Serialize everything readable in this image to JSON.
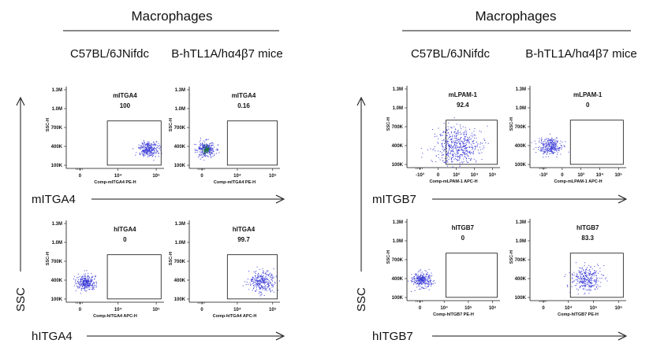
{
  "groups": [
    {
      "title": "Macrophages",
      "strains": [
        "C57BL/6JNifdc",
        "B-hTL1A/hα4β7 mice"
      ],
      "y_axis_label": "SSC",
      "rows": [
        {
          "x_axis_label": "mITGA4",
          "panels": [
            {
              "gate_name": "mITGA4",
              "gate_value": "100",
              "x_axis_name": "Comp-mITGA4 PE-H",
              "x_ticks": [
                "0",
                "10⁴",
                "10⁵"
              ],
              "y_axis_name": "SSC-H",
              "y_ticks": [
                "1.3M",
                "1.0M",
                "700K",
                "400K",
                "100K"
              ],
              "population": {
                "x": 0.84,
                "y": 0.24,
                "spread": 0.05,
                "density": "normal"
              }
            },
            {
              "gate_name": "mITGA4",
              "gate_value": "0.16",
              "x_axis_name": "Comp-mITGA4 PE-H",
              "x_ticks": [
                "0",
                "10⁴",
                "10⁵"
              ],
              "y_axis_name": "SSC-H",
              "y_ticks": [
                "1.3M",
                "1.0M",
                "700K",
                "400K",
                "100K"
              ],
              "population": {
                "x": 0.18,
                "y": 0.24,
                "spread": 0.05,
                "density": "dense"
              }
            }
          ]
        },
        {
          "x_axis_label": "hITGA4",
          "panels": [
            {
              "gate_name": "hITGA4",
              "gate_value": "0",
              "x_axis_name": "Comp-hITGA4 APC-H",
              "x_ticks": [
                "0",
                "10⁴",
                "10⁵"
              ],
              "y_axis_name": "SSC-H",
              "y_ticks": [
                "1.3M",
                "1.0M",
                "700K",
                "400K",
                "100K"
              ],
              "population": {
                "x": 0.2,
                "y": 0.24,
                "spread": 0.05,
                "density": "normal"
              }
            },
            {
              "gate_name": "hITGA4",
              "gate_value": "99.7",
              "x_axis_name": "Comp-hITGA4 APC-H",
              "x_ticks": [
                "0",
                "10⁴",
                "10⁵"
              ],
              "y_axis_name": "SSC-H",
              "y_ticks": [
                "1.3M",
                "1.0M",
                "700K",
                "400K",
                "100K"
              ],
              "population": {
                "x": 0.8,
                "y": 0.26,
                "spread": 0.07,
                "density": "normal"
              }
            }
          ]
        }
      ]
    },
    {
      "title": "Macrophages",
      "strains": [
        "C57BL/6JNifdc",
        "B-hTL1A/hα4β7 mice"
      ],
      "y_axis_label": "SSC",
      "rows": [
        {
          "x_axis_label": "mITGB7",
          "panels": [
            {
              "gate_name": "mLPAM-1",
              "gate_value": "92.4",
              "x_axis_name": "Comp-mLPAM-1 APC-H",
              "x_ticks": [
                "-10³",
                "0",
                "10³",
                "10⁴",
                "10⁵"
              ],
              "y_axis_name": "SSC-H",
              "y_ticks": [
                "1.3M",
                "1.0M",
                "700K",
                "400K",
                "100K"
              ],
              "population": {
                "x": 0.55,
                "y": 0.27,
                "spread": 0.13,
                "density": "wide"
              }
            },
            {
              "gate_name": "mLPAM-1",
              "gate_value": "0",
              "x_axis_name": "Comp-mLPAM-1 APC-H",
              "x_ticks": [
                "-10³",
                "0",
                "10³",
                "10⁴",
                "10⁵"
              ],
              "y_axis_name": "SSC-H",
              "y_ticks": [
                "1.3M",
                "1.0M",
                "700K",
                "400K",
                "100K"
              ],
              "population": {
                "x": 0.2,
                "y": 0.26,
                "spread": 0.06,
                "density": "normal"
              }
            }
          ]
        },
        {
          "x_axis_label": "hITGB7",
          "panels": [
            {
              "gate_name": "hITGB7",
              "gate_value": "0",
              "x_axis_name": "Comp-hITGB7 PE-H",
              "x_ticks": [
                "0",
                "10⁴",
                "10⁵",
                "10⁶"
              ],
              "y_axis_name": "SSC-H",
              "y_ticks": [
                "1.3M",
                "1.0M",
                "700K",
                "400K",
                "100K"
              ],
              "population": {
                "x": 0.16,
                "y": 0.26,
                "spread": 0.05,
                "density": "normal"
              }
            },
            {
              "gate_name": "hITGB7",
              "gate_value": "83.3",
              "x_axis_name": "Comp-hITGB7 PE-H",
              "x_ticks": [
                "0",
                "10⁴",
                "10⁵",
                "10⁶"
              ],
              "y_axis_name": "SSC-H",
              "y_ticks": [
                "1.3M",
                "1.0M",
                "700K",
                "400K",
                "100K"
              ],
              "population": {
                "x": 0.58,
                "y": 0.27,
                "spread": 0.08,
                "density": "normal"
              }
            }
          ]
        }
      ]
    }
  ],
  "colors": {
    "dots": "#3a3ad6",
    "dense_core": "#1d7a3a",
    "ink": "#111111"
  }
}
